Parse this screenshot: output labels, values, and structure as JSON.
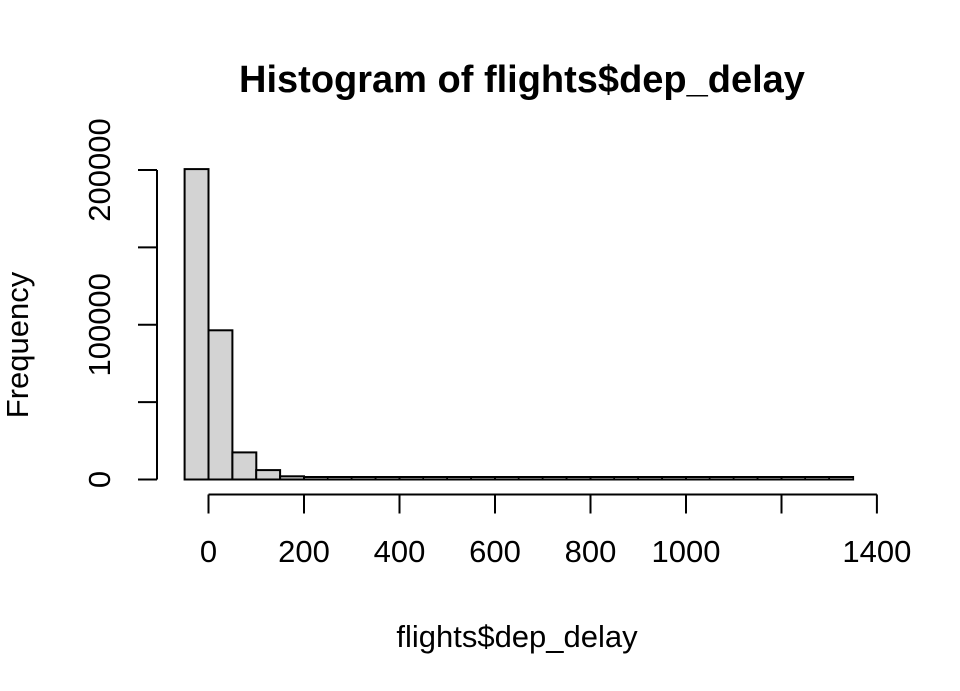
{
  "page": {
    "background": "#ffffff"
  },
  "chart_data": {
    "type": "bar",
    "subtype": "histogram",
    "title": "Histogram of flights$dep_delay",
    "xlabel": "flights$dep_delay",
    "ylabel": "Frequency",
    "bin_start": -50,
    "bin_width": 50,
    "counts": [
      200600,
      96400,
      17500,
      6100,
      2100,
      1100,
      700,
      450,
      300,
      220,
      160,
      120,
      90,
      70,
      55,
      45,
      35,
      30,
      25,
      20,
      18,
      15,
      12,
      10,
      8,
      6,
      5,
      4
    ],
    "xlim": [
      -50,
      1400
    ],
    "ylim": [
      0,
      200000
    ],
    "x_ticks": {
      "values": [
        0,
        200,
        400,
        600,
        800,
        1000,
        1200,
        1400
      ],
      "labels": [
        "0",
        "200",
        "400",
        "600",
        "800",
        "1000",
        "",
        "1400"
      ]
    },
    "y_ticks": {
      "values": [
        0,
        50000,
        100000,
        150000,
        200000
      ],
      "labels": [
        "0",
        "",
        "100000",
        "",
        "200000"
      ]
    },
    "grid": false,
    "legend": false,
    "bar_fill": "#d3d3d3",
    "bar_stroke": "#000000",
    "axis_color": "#000000",
    "text_color": "#000000"
  }
}
